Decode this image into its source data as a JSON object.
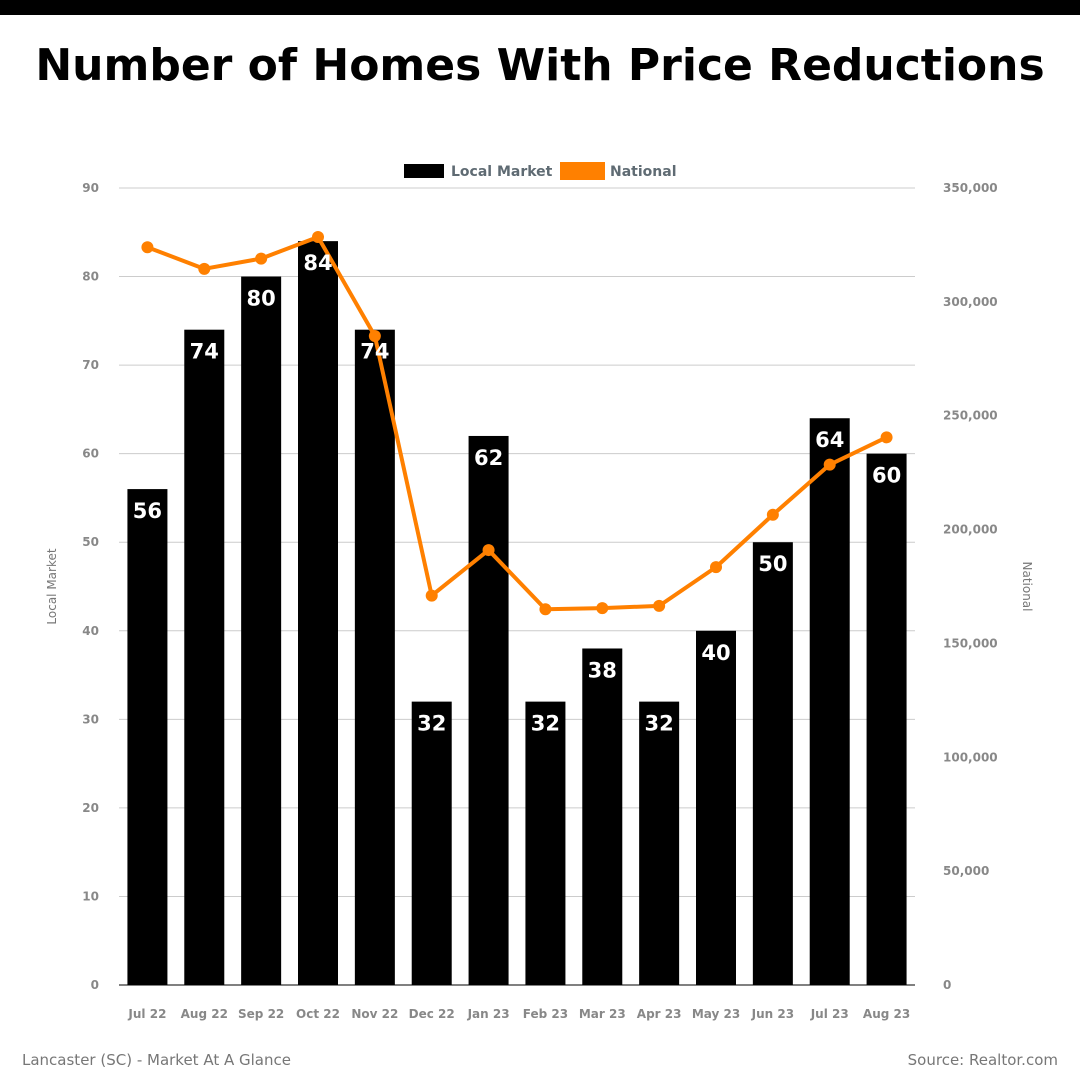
{
  "header": {
    "title": "Number of Homes With Price Reductions"
  },
  "footer": {
    "left": "Lancaster (SC) - Market At A Glance",
    "right": "Source: Realtor.com"
  },
  "colors": {
    "local": "#000000",
    "national": "#ff8000",
    "grid": "#cccccc",
    "axis_text": "#888888",
    "legend_text": "#5f6b73"
  },
  "chart_data": {
    "type": "bar",
    "categories": [
      "Jul 22",
      "Aug 22",
      "Sep 22",
      "Oct 22",
      "Nov 22",
      "Dec 22",
      "Jan 23",
      "Feb 23",
      "Mar 23",
      "Apr 23",
      "May 23",
      "Jun 23",
      "Jul 23",
      "Aug 23"
    ],
    "series": [
      {
        "name": "Local Market",
        "type": "bar",
        "axis": "left",
        "values": [
          56,
          74,
          80,
          84,
          74,
          32,
          62,
          32,
          38,
          32,
          40,
          50,
          64,
          60
        ]
      },
      {
        "name": "National",
        "type": "line",
        "axis": "right",
        "values": [
          324000,
          314500,
          319000,
          328500,
          285000,
          171000,
          191000,
          165000,
          165500,
          166500,
          183500,
          206500,
          228500,
          240500
        ]
      }
    ],
    "ylabel": "Local Market",
    "y2label": "National",
    "ylim": [
      0,
      90
    ],
    "y2lim": [
      0,
      350000
    ],
    "yticks": [
      "0",
      "10",
      "20",
      "30",
      "40",
      "50",
      "60",
      "70",
      "80",
      "90"
    ],
    "y2ticks": [
      "0",
      "50,000",
      "100,000",
      "150,000",
      "200,000",
      "250,000",
      "300,000",
      "350,000"
    ],
    "legend_position": "top-center",
    "grid": true
  }
}
